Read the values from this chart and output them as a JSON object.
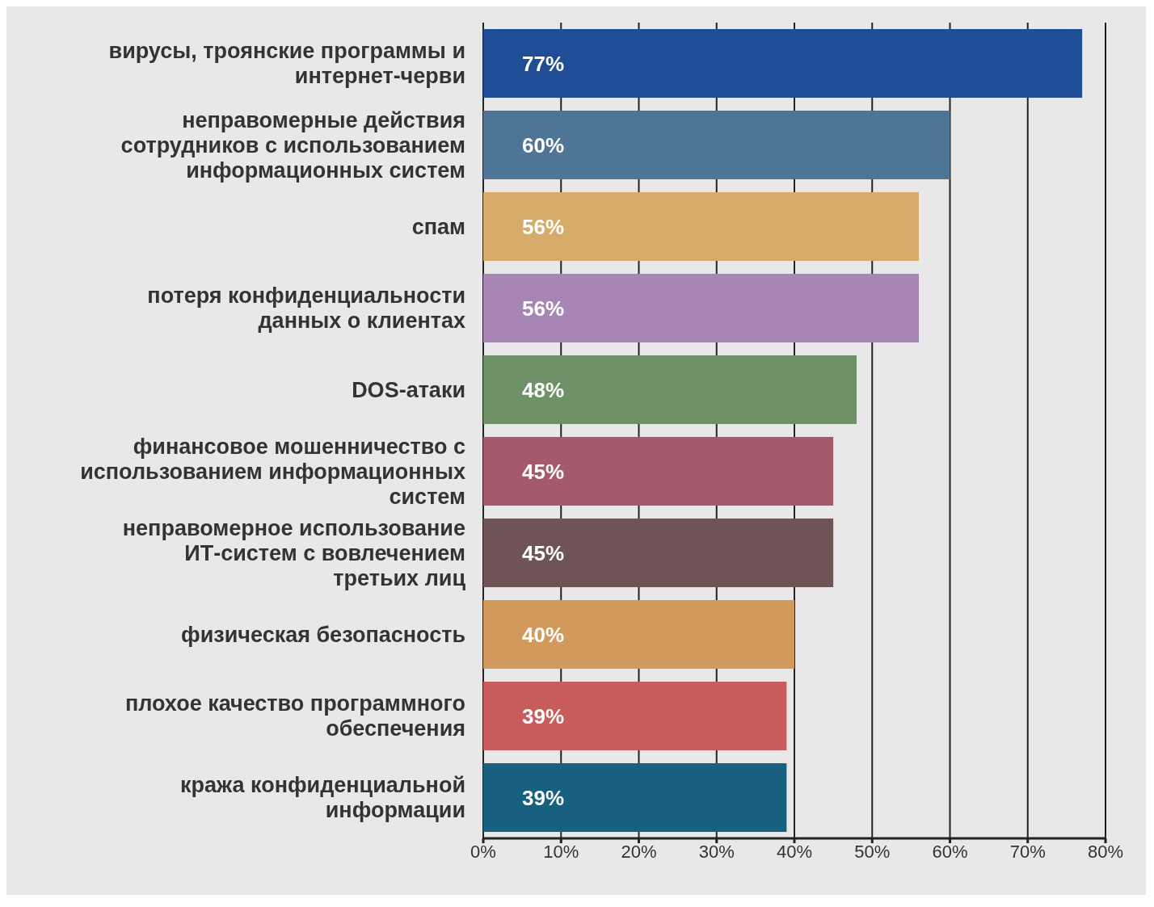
{
  "chart_data": {
    "type": "bar",
    "orientation": "horizontal",
    "categories": [
      "вирусы, троянские программы и интернет-черви",
      "неправомерные действия сотрудников с использованием информационных систем",
      "спам",
      "потеря конфиденциальности данных о клиентах",
      "DOS-атаки",
      "финансовое мошенничество с использованием информационных систем",
      "неправомерное использование ИТ-систем с вовлечением третьих лиц",
      "физическая безопасность",
      "плохое качество программного обеспечения",
      "кража конфиденциальной информации"
    ],
    "values": [
      77,
      60,
      56,
      56,
      48,
      45,
      45,
      40,
      39,
      39
    ],
    "colors": [
      "#1f4e96",
      "#4f7596",
      "#d6aa68",
      "#a786b5",
      "#6f9167",
      "#a45a6a",
      "#6e5457",
      "#d19a5c",
      "#c85c5d",
      "#17607f"
    ],
    "value_labels": [
      "77%",
      "60%",
      "56%",
      "56%",
      "48%",
      "45%",
      "45%",
      "40%",
      "39%",
      "39%"
    ],
    "xlim": [
      0,
      80
    ],
    "xticks": [
      {
        "value": 0,
        "label": "0%"
      },
      {
        "value": 10,
        "label": "10%"
      },
      {
        "value": 20,
        "label": "20%"
      },
      {
        "value": 30,
        "label": "30%"
      },
      {
        "value": 40,
        "label": "40%"
      },
      {
        "value": 50,
        "label": "50%"
      },
      {
        "value": 60,
        "label": "60%"
      },
      {
        "value": 70,
        "label": "70%"
      },
      {
        "value": 80,
        "label": "80%"
      }
    ],
    "grid": "x"
  }
}
